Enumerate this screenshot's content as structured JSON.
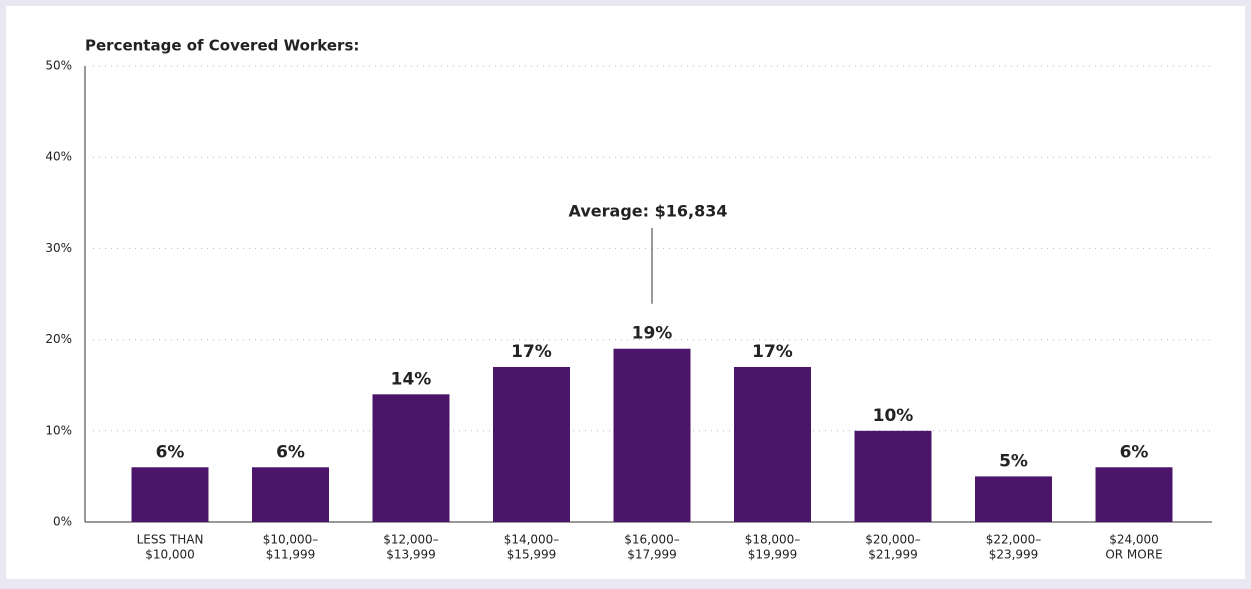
{
  "chart_data": {
    "type": "bar",
    "title": "Percentage of Covered Workers:",
    "categories": [
      [
        "LESS THAN",
        "$10,000"
      ],
      [
        "$10,000–",
        "$11,999"
      ],
      [
        "$12,000–",
        "$13,999"
      ],
      [
        "$14,000–",
        "$15,999"
      ],
      [
        "$16,000–",
        "$17,999"
      ],
      [
        "$18,000–",
        "$19,999"
      ],
      [
        "$20,000–",
        "$21,999"
      ],
      [
        "$22,000–",
        "$23,999"
      ],
      [
        "$24,000",
        "OR MORE"
      ]
    ],
    "values": [
      6,
      6,
      14,
      17,
      19,
      17,
      10,
      5,
      6
    ],
    "value_labels": [
      "6%",
      "6%",
      "14%",
      "17%",
      "19%",
      "17%",
      "10%",
      "5%",
      "6%"
    ],
    "color": "#4b1569",
    "ylim": [
      0,
      50
    ],
    "yticks": [
      {
        "value": 0,
        "label": "0%"
      },
      {
        "value": 10,
        "label": "10%"
      },
      {
        "value": 20,
        "label": "20%"
      },
      {
        "value": 30,
        "label": "30%"
      },
      {
        "value": 40,
        "label": "40%"
      },
      {
        "value": 50,
        "label": "50%"
      }
    ],
    "grid": true,
    "annotations": [
      {
        "text": "Average: $16,834",
        "category": 4
      }
    ]
  }
}
